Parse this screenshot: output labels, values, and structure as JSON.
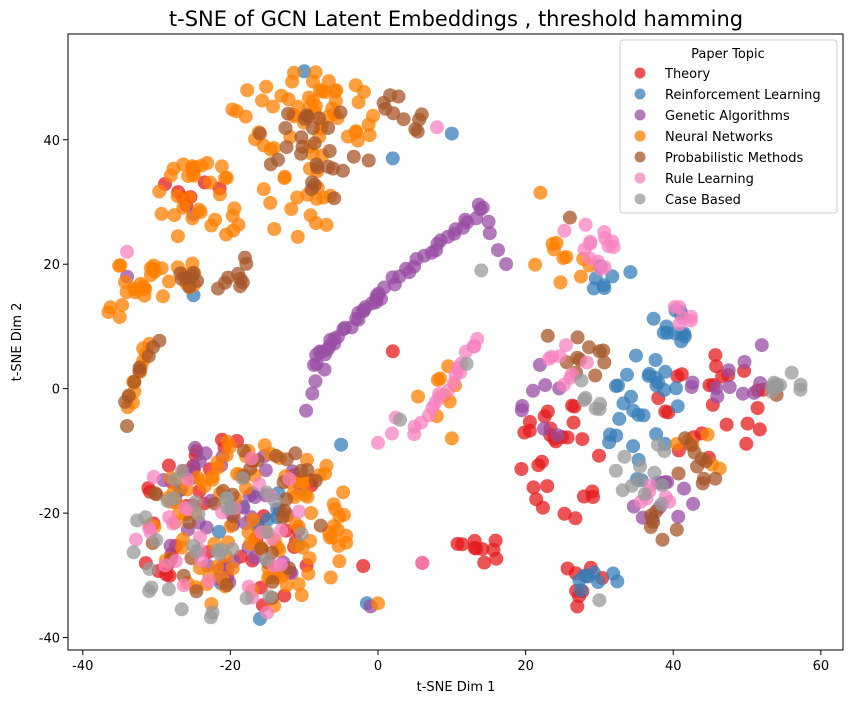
{
  "chart_data": {
    "type": "scatter",
    "title": "t-SNE of GCN Latent Embeddings , threshold hamming",
    "xlabel": "t-SNE Dim 1",
    "ylabel": "t-SNE Dim 2",
    "xlim": [
      -42,
      63
    ],
    "ylim": [
      -42,
      57
    ],
    "xticks": [
      -40,
      -20,
      0,
      20,
      40,
      60
    ],
    "yticks": [
      -40,
      -20,
      0,
      20,
      40
    ],
    "grid": false,
    "legend": {
      "title": "Paper Topic",
      "position": "top-right"
    },
    "series": [
      {
        "name": "Theory",
        "color": "#e41a1c",
        "clusters": [
          {
            "cx": -20,
            "cy": -22,
            "rx": 13,
            "ry": 14,
            "n": 50
          },
          {
            "cx": 25,
            "cy": -12,
            "rx": 6,
            "ry": 10,
            "n": 28
          },
          {
            "cx": 45,
            "cy": -3,
            "rx": 8,
            "ry": 9,
            "n": 24
          },
          {
            "cx": 14,
            "cy": -26,
            "rx": 5,
            "ry": 2,
            "n": 10
          },
          {
            "cx": 28,
            "cy": -31,
            "rx": 3,
            "ry": 4,
            "n": 8
          },
          {
            "cx": -25,
            "cy": 33,
            "rx": 5,
            "ry": 4,
            "n": 8
          }
        ],
        "points": [
          [
            -2,
            -28.5
          ],
          [
            6,
            -28
          ],
          [
            27,
            -35
          ],
          [
            2,
            6
          ]
        ]
      },
      {
        "name": "Reinforcement Learning",
        "color": "#377eb8",
        "clusters": [
          {
            "cx": 36,
            "cy": -5,
            "rx": 5,
            "ry": 11,
            "n": 30
          },
          {
            "cx": 40,
            "cy": 10,
            "rx": 3,
            "ry": 3,
            "n": 12
          },
          {
            "cx": 31,
            "cy": 17,
            "rx": 4,
            "ry": 3,
            "n": 8
          },
          {
            "cx": 30,
            "cy": -31,
            "rx": 3,
            "ry": 3,
            "n": 8
          },
          {
            "cx": -18,
            "cy": -20,
            "rx": 10,
            "ry": 12,
            "n": 12
          }
        ],
        "points": [
          [
            -10,
            51
          ],
          [
            2,
            37
          ],
          [
            10,
            41
          ],
          [
            -16,
            -37
          ],
          [
            -1.5,
            -34.5
          ],
          [
            -25,
            15
          ],
          [
            -5,
            -9
          ]
        ]
      },
      {
        "name": "Genetic Algorithms",
        "color": "#984ea3",
        "clusters": [
          {
            "cx": -20,
            "cy": -21,
            "rx": 12,
            "ry": 13,
            "n": 40
          },
          {
            "cx": 47,
            "cy": 1,
            "rx": 5,
            "ry": 4,
            "n": 10
          },
          {
            "cx": 38,
            "cy": -18,
            "rx": 5,
            "ry": 4,
            "n": 10
          },
          {
            "cx": 22,
            "cy": -3,
            "rx": 4,
            "ry": 7,
            "n": 8
          }
        ],
        "lines": [
          {
            "from": [
              -9,
              4
            ],
            "to": [
              0,
              15
            ],
            "n": 24
          },
          {
            "from": [
              0,
              15
            ],
            "to": [
              14,
              29
            ],
            "n": 24
          },
          {
            "from": [
              14,
              29
            ],
            "to": [
              17,
              20
            ],
            "n": 5
          },
          {
            "from": [
              -10,
              -3
            ],
            "to": [
              -7,
              5
            ],
            "n": 5
          }
        ],
        "points": [
          [
            -1,
            -35
          ],
          [
            52,
            7
          ],
          [
            -25,
            28
          ],
          [
            -34,
            18
          ]
        ]
      },
      {
        "name": "Neural Networks",
        "color": "#ff7f00",
        "clusters": [
          {
            "cx": -17,
            "cy": -22,
            "rx": 14,
            "ry": 14,
            "n": 110
          },
          {
            "cx": -10,
            "cy": 44,
            "rx": 10,
            "ry": 7,
            "n": 55
          },
          {
            "cx": -24,
            "cy": 30,
            "rx": 6,
            "ry": 7,
            "n": 32
          },
          {
            "cx": -30,
            "cy": 18,
            "rx": 6,
            "ry": 4,
            "n": 22
          },
          {
            "cx": -11,
            "cy": 30,
            "rx": 5,
            "ry": 7,
            "n": 18
          },
          {
            "cx": 25,
            "cy": 21,
            "rx": 4,
            "ry": 4,
            "n": 10
          },
          {
            "cx": 43,
            "cy": -11,
            "rx": 4,
            "ry": 4,
            "n": 6
          },
          {
            "cx": 9,
            "cy": 0,
            "rx": 5,
            "ry": 5,
            "n": 8
          }
        ],
        "lines": [
          {
            "from": [
              -34,
              -3
            ],
            "to": [
              -31,
              7
            ],
            "n": 12
          },
          {
            "from": [
              -37,
              12
            ],
            "to": [
              -30,
              19
            ],
            "n": 8
          }
        ],
        "points": [
          [
            22,
            31.5
          ],
          [
            10,
            -8
          ],
          [
            0,
            -34.5
          ],
          [
            -35,
            11.5
          ]
        ]
      },
      {
        "name": "Probabilistic Methods",
        "color": "#a65628",
        "clusters": [
          {
            "cx": -19,
            "cy": -21,
            "rx": 12,
            "ry": 14,
            "n": 35
          },
          {
            "cx": -8,
            "cy": 38,
            "rx": 7,
            "ry": 8,
            "n": 28
          },
          {
            "cx": -22,
            "cy": 19,
            "rx": 5,
            "ry": 4,
            "n": 16
          },
          {
            "cx": 3,
            "cy": 43,
            "rx": 3,
            "ry": 5,
            "n": 10
          },
          {
            "cx": 28,
            "cy": 5,
            "rx": 3,
            "ry": 4,
            "n": 10
          },
          {
            "cx": 38,
            "cy": -22,
            "rx": 3,
            "ry": 3,
            "n": 6
          },
          {
            "cx": 44,
            "cy": -11,
            "rx": 4,
            "ry": 5,
            "n": 10
          }
        ],
        "lines": [
          {
            "from": [
              -34,
              -2
            ],
            "to": [
              -30,
              8
            ],
            "n": 8
          }
        ],
        "points": [
          [
            -16,
            41
          ],
          [
            -34,
            -6
          ],
          [
            26,
            27.5
          ],
          [
            23,
            8.5
          ],
          [
            54,
            -1
          ]
        ]
      },
      {
        "name": "Rule Learning",
        "color": "#f781bf",
        "clusters": [
          {
            "cx": -20,
            "cy": -22,
            "rx": 13,
            "ry": 13,
            "n": 30
          },
          {
            "cx": 28,
            "cy": 22,
            "rx": 4,
            "ry": 5,
            "n": 14
          },
          {
            "cx": 26,
            "cy": 4,
            "rx": 3,
            "ry": 4,
            "n": 8
          },
          {
            "cx": 41,
            "cy": 12,
            "rx": 3,
            "ry": 2,
            "n": 6
          },
          {
            "cx": 37,
            "cy": -18,
            "rx": 3,
            "ry": 3,
            "n": 6
          }
        ],
        "lines": [
          {
            "from": [
              5,
              -7
            ],
            "to": [
              14,
              8
            ],
            "n": 18
          },
          {
            "from": [
              0,
              -9
            ],
            "to": [
              3,
              -5
            ],
            "n": 3
          }
        ],
        "points": [
          [
            -34,
            22
          ],
          [
            8,
            42
          ],
          [
            -15,
            -36
          ],
          [
            6,
            -28
          ]
        ]
      },
      {
        "name": "Case Based",
        "color": "#999999",
        "clusters": [
          {
            "cx": -22,
            "cy": -24,
            "rx": 12,
            "ry": 13,
            "n": 34
          },
          {
            "cx": 55,
            "cy": 1,
            "rx": 3,
            "ry": 2,
            "n": 10
          },
          {
            "cx": 36,
            "cy": -14,
            "rx": 4,
            "ry": 6,
            "n": 12
          },
          {
            "cx": 29,
            "cy": 0,
            "rx": 3,
            "ry": 4,
            "n": 6
          }
        ],
        "points": [
          [
            12,
            4
          ],
          [
            3,
            -5
          ],
          [
            14,
            19
          ],
          [
            30,
            -34
          ],
          [
            -14,
            -18
          ]
        ]
      }
    ]
  }
}
